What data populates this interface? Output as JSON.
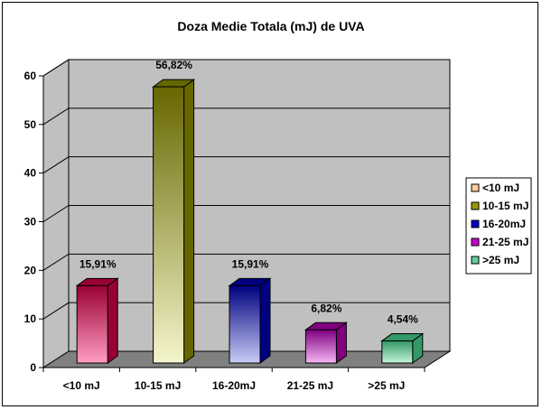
{
  "chart_data": {
    "type": "bar",
    "title": "Doza Medie Totala (mJ) de UVA",
    "categories": [
      "<10 mJ",
      "10-15 mJ",
      "16-20mJ",
      "21-25 mJ",
      ">25 mJ"
    ],
    "values": [
      15.91,
      56.82,
      15.91,
      6.82,
      4.54
    ],
    "data_labels": [
      "15,91%",
      "56,82%",
      "15,91%",
      "6,82%",
      "4,54%"
    ],
    "yticks": [
      "0",
      "10",
      "20",
      "30",
      "40",
      "50",
      "60"
    ],
    "ylim": [
      0,
      60
    ],
    "grid": true,
    "legend": {
      "placement": "right",
      "entries": [
        "<10 mJ",
        "10-15 mJ",
        "16-20mJ",
        "21-25 mJ",
        ">25 mJ"
      ]
    },
    "colors": {
      "wall": "#c0c0c0",
      "floor": "#808080",
      "bars": [
        "#ff9ec4",
        "#f5f5cc",
        "#c7ccf5",
        "#f5b8f5",
        "#c7f5d8"
      ],
      "bar_tops": [
        "#990033",
        "#666600",
        "#000080",
        "#800080",
        "#339966"
      ],
      "legend_swatches": [
        "#ffcc99",
        "#999900",
        "#0000cc",
        "#cc00cc",
        "#66cc99"
      ]
    }
  }
}
